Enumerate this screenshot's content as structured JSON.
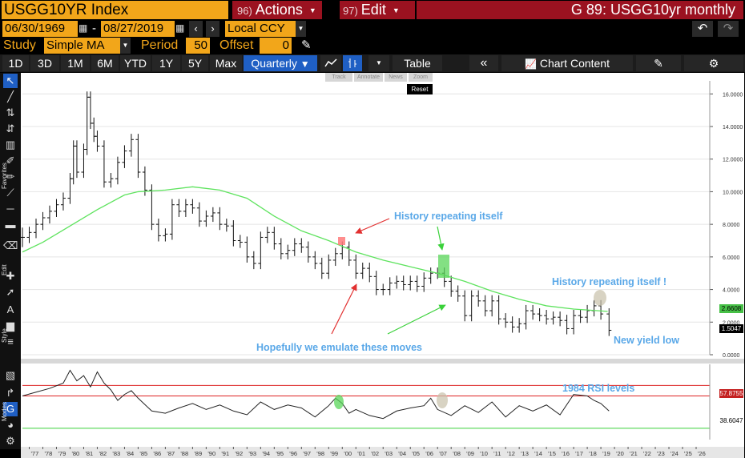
{
  "header": {
    "ticker": "USGG10YR Index",
    "actions_num": "96)",
    "actions_label": "Actions",
    "edit_num": "97)",
    "edit_label": "Edit",
    "chart_title": "G 89: USGG10yr monthly"
  },
  "controls": {
    "start_date": "06/30/1969",
    "date_sep": "-",
    "end_date": "08/27/2019",
    "currency": "Local CCY",
    "study_label": "Study",
    "study_value": "Simple MA",
    "period_label": "Period",
    "period_value": "50",
    "offset_label": "Offset",
    "offset_value": "0"
  },
  "tabs": [
    "1D",
    "3D",
    "1M",
    "6M",
    "YTD",
    "1Y",
    "5Y",
    "Max"
  ],
  "frequency": "Quarterly",
  "toolbar": {
    "table_label": "Table",
    "chart_content_label": "Chart Content",
    "track": "Track",
    "annotate": "Annotate",
    "news": "News",
    "zoom": "Zoom",
    "reset": "Reset"
  },
  "side_labels": {
    "favorites": "Favorites",
    "edit": "Edit",
    "style": "Style",
    "modes": "Modes"
  },
  "annotations": {
    "history1": "History repeating itself",
    "history2": "History repeating itself !",
    "hopefully": "Hopefully we emulate these moves",
    "new_low": "New yield low",
    "rsi_levels": "1984 RSI levels"
  },
  "colors": {
    "accent": "#f2a61a",
    "red_header": "#9b1220",
    "ma_line": "#5ee35e",
    "annotation_text": "#5aa8e8",
    "arrow_red": "#e23030"
  },
  "chart_data": [
    {
      "type": "line",
      "name": "price",
      "ylim": [
        0,
        16.8
      ],
      "yticks": [
        "16.0000",
        "14.0000",
        "12.0000",
        "10.0000",
        "8.0000",
        "6.0000",
        "4.0000",
        "2.0000",
        "0.0000"
      ],
      "last_value_label": "1.5047",
      "ma_label": "2.6608",
      "xlim": [
        1976.5,
        2027
      ],
      "x": [
        1976.5,
        1977,
        1977.5,
        1978,
        1978.5,
        1979,
        1979.5,
        1980,
        1980.25,
        1980.5,
        1981,
        1981.25,
        1981.5,
        1981.75,
        1982,
        1982.5,
        1983,
        1983.5,
        1984,
        1984.5,
        1985,
        1985.5,
        1986,
        1986.5,
        1987,
        1987.5,
        1988,
        1988.5,
        1989,
        1989.5,
        1990,
        1990.5,
        1991,
        1991.5,
        1992,
        1992.5,
        1993,
        1993.5,
        1994,
        1994.5,
        1995,
        1995.5,
        1996,
        1996.5,
        1997,
        1997.5,
        1998,
        1998.5,
        1999,
        1999.5,
        2000,
        2000.5,
        2001,
        2001.5,
        2002,
        2002.5,
        2003,
        2003.5,
        2004,
        2004.5,
        2005,
        2005.5,
        2006,
        2006.5,
        2007,
        2007.5,
        2008,
        2008.5,
        2009,
        2009.5,
        2010,
        2010.5,
        2011,
        2011.5,
        2012,
        2012.5,
        2013,
        2013.5,
        2014,
        2014.5,
        2015,
        2015.5,
        2016,
        2016.5,
        2017,
        2017.5,
        2018,
        2018.5,
        2019,
        2019.6
      ],
      "y": [
        7.2,
        7.5,
        8.0,
        8.4,
        8.8,
        9.2,
        9.6,
        10.8,
        12.8,
        11.2,
        12.6,
        15.8,
        14.2,
        13.4,
        12.8,
        10.6,
        10.8,
        11.8,
        12.5,
        13.2,
        11.2,
        10.1,
        8.0,
        7.3,
        7.4,
        9.2,
        8.8,
        9.2,
        9.0,
        8.2,
        8.5,
        8.7,
        8.0,
        7.9,
        7.0,
        6.9,
        6.0,
        5.6,
        7.2,
        7.5,
        6.8,
        6.2,
        6.4,
        6.8,
        6.6,
        6.0,
        5.6,
        5.0,
        5.8,
        6.2,
        6.6,
        5.8,
        5.0,
        5.3,
        4.8,
        4.0,
        4.0,
        4.4,
        4.5,
        4.3,
        4.5,
        4.2,
        4.7,
        5.0,
        5.0,
        4.5,
        3.9,
        3.6,
        2.4,
        3.6,
        3.3,
        2.7,
        3.3,
        2.2,
        2.0,
        1.7,
        1.9,
        2.7,
        2.5,
        2.4,
        2.2,
        2.3,
        2.1,
        1.6,
        2.4,
        2.3,
        2.7,
        3.0,
        2.5,
        1.5
      ]
    },
    {
      "type": "line",
      "name": "Simple MA",
      "x": [
        1976.5,
        1978,
        1980,
        1982,
        1984,
        1985,
        1987,
        1989,
        1991,
        1993,
        1995,
        1997,
        1999,
        2001,
        2003,
        2005,
        2007,
        2009,
        2011,
        2013,
        2015,
        2017,
        2019.5
      ],
      "y": [
        6.3,
        6.9,
        7.9,
        8.9,
        9.8,
        10.0,
        10.1,
        10.3,
        10.1,
        9.6,
        8.5,
        7.6,
        7.0,
        6.3,
        5.8,
        5.4,
        5.0,
        4.5,
        3.9,
        3.4,
        3.0,
        2.8,
        2.66
      ]
    },
    {
      "type": "line",
      "name": "RSI",
      "ylim": [
        0,
        100
      ],
      "upper_label": "57.8755",
      "last_value_label": "38.6047",
      "x": [
        1976.5,
        1977.5,
        1978.5,
        1979.5,
        1980,
        1980.5,
        1981,
        1981.5,
        1982,
        1982.5,
        1983,
        1983.5,
        1984,
        1984.5,
        1985,
        1986,
        1987,
        1988,
        1989,
        1990,
        1991,
        1992,
        1993,
        1994,
        1995,
        1996,
        1997,
        1998,
        1999,
        1999.5,
        2000,
        2000.5,
        2001,
        2002,
        2003,
        2004,
        2005,
        2006,
        2006.5,
        2007,
        2008,
        2009,
        2010,
        2011,
        2012,
        2013,
        2014,
        2015,
        2016,
        2017,
        2018,
        2018.5,
        2019,
        2019.6
      ],
      "y": [
        58,
        63,
        68,
        75,
        92,
        78,
        85,
        70,
        90,
        75,
        66,
        52,
        60,
        65,
        55,
        38,
        35,
        42,
        48,
        40,
        46,
        38,
        33,
        50,
        40,
        46,
        42,
        30,
        45,
        55,
        48,
        35,
        40,
        32,
        28,
        38,
        42,
        45,
        55,
        40,
        32,
        45,
        36,
        50,
        30,
        45,
        38,
        46,
        33,
        60,
        58,
        52,
        48,
        38
      ]
    }
  ]
}
